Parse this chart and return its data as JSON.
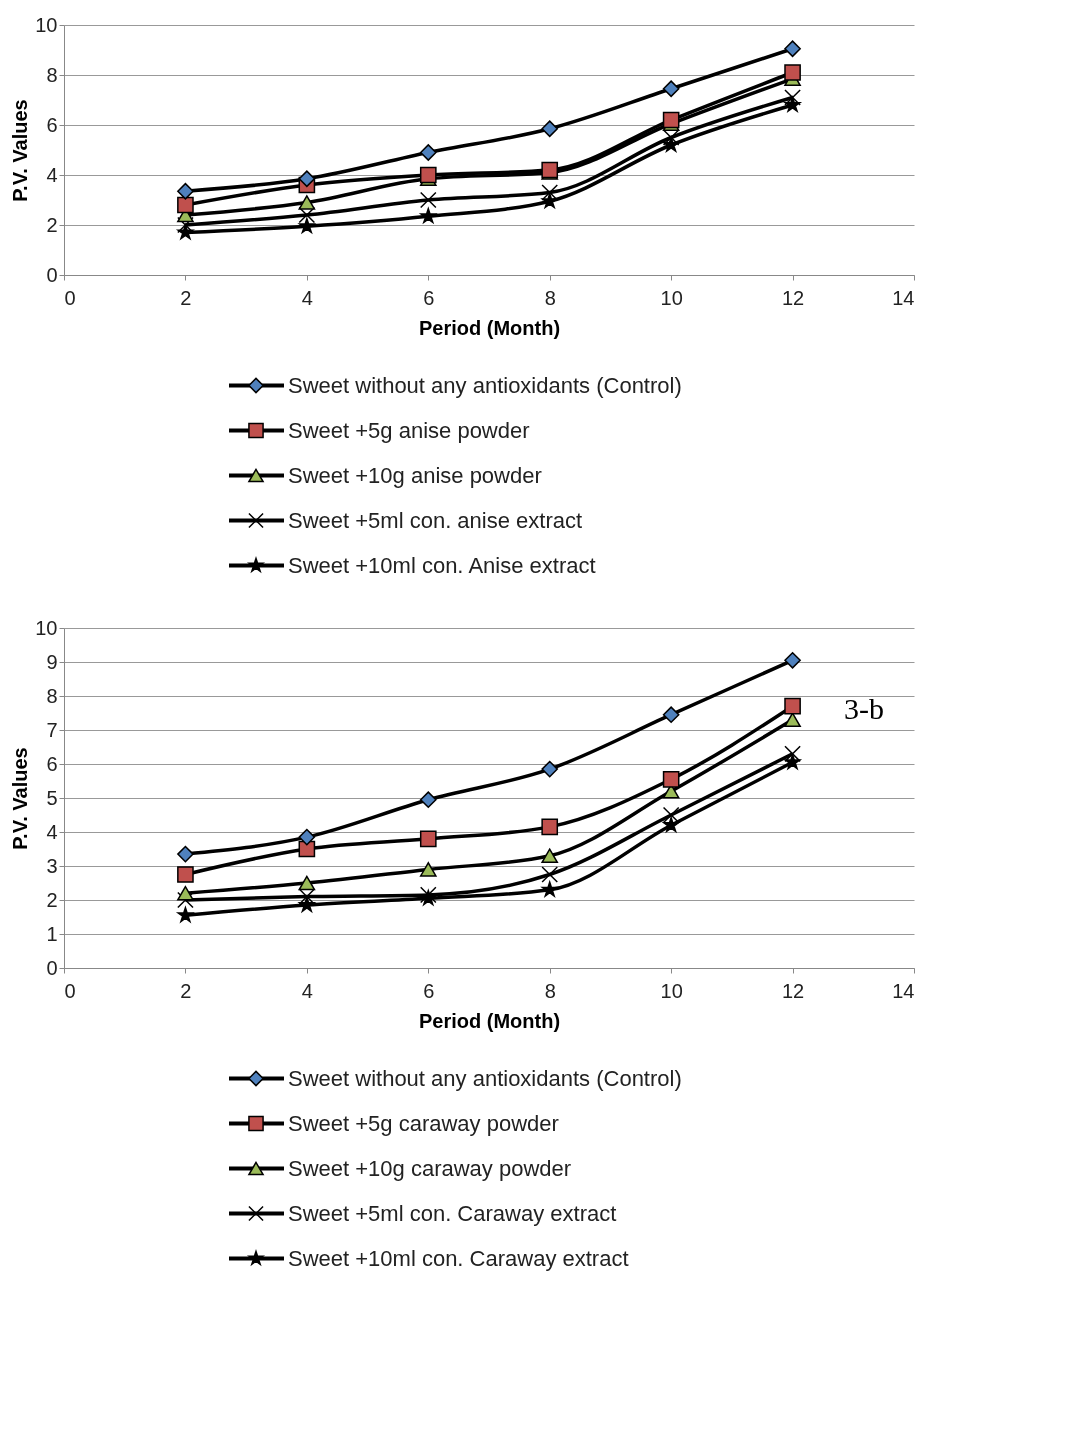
{
  "chart_data": [
    {
      "type": "line",
      "xlabel": "Period (Month)",
      "ylabel": "P.V. Values",
      "x": [
        2,
        4,
        6,
        8,
        10,
        12
      ],
      "xlim": [
        0,
        14
      ],
      "xticks": [
        0,
        2,
        4,
        6,
        8,
        10,
        12,
        14
      ],
      "ylim": [
        0,
        10
      ],
      "yticks": [
        0,
        2,
        4,
        6,
        8,
        10
      ],
      "grid": "y",
      "legend": "bottom",
      "series": [
        {
          "name": "Sweet without any antioxidants (Control)",
          "color": "#4f81bd",
          "marker": "diamond",
          "values": [
            3.35,
            3.85,
            4.9,
            5.85,
            7.45,
            9.05
          ]
        },
        {
          "name": "Sweet +5g anise powder",
          "color": "#c0504d",
          "marker": "square",
          "values": [
            2.8,
            3.6,
            4.0,
            4.2,
            6.2,
            8.1
          ]
        },
        {
          "name": "Sweet +10g anise powder",
          "color": "#9bbb59",
          "marker": "triangle",
          "values": [
            2.4,
            2.9,
            3.85,
            4.1,
            6.05,
            7.85
          ]
        },
        {
          "name": "Sweet +5ml con. anise extract",
          "color": "#000000",
          "marker": "cross",
          "values": [
            2.0,
            2.4,
            3.0,
            3.3,
            5.5,
            7.1
          ]
        },
        {
          "name": "Sweet +10ml con. Anise extract",
          "color": "#000000",
          "marker": "star",
          "values": [
            1.7,
            1.95,
            2.35,
            2.95,
            5.2,
            6.8
          ]
        }
      ]
    },
    {
      "type": "line",
      "xlabel": "Period (Month)",
      "ylabel": "P.V. Values",
      "x": [
        2,
        4,
        6,
        8,
        10,
        12
      ],
      "xlim": [
        0,
        14
      ],
      "xticks": [
        0,
        2,
        4,
        6,
        8,
        10,
        12,
        14
      ],
      "ylim": [
        0,
        10
      ],
      "yticks": [
        0,
        1,
        2,
        3,
        4,
        5,
        6,
        7,
        8,
        9,
        10
      ],
      "grid": "y",
      "legend": "bottom",
      "annotations": [
        "3-b"
      ],
      "series": [
        {
          "name": "Sweet without any antioxidants (Control)",
          "color": "#4f81bd",
          "marker": "diamond",
          "values": [
            3.35,
            3.85,
            4.95,
            5.85,
            7.45,
            9.05
          ]
        },
        {
          "name": "Sweet +5g caraway powder",
          "color": "#c0504d",
          "marker": "square",
          "values": [
            2.75,
            3.5,
            3.8,
            4.15,
            5.55,
            7.7
          ]
        },
        {
          "name": "Sweet +10g caraway powder",
          "color": "#9bbb59",
          "marker": "triangle",
          "values": [
            2.2,
            2.5,
            2.9,
            3.3,
            5.2,
            7.3
          ]
        },
        {
          "name": "Sweet +5ml con. Caraway extract",
          "color": "#000000",
          "marker": "cross",
          "values": [
            2.0,
            2.1,
            2.15,
            2.75,
            4.5,
            6.3
          ]
        },
        {
          "name": "Sweet +10ml con. Caraway extract",
          "color": "#000000",
          "marker": "star",
          "values": [
            1.55,
            1.85,
            2.05,
            2.3,
            4.2,
            6.05
          ]
        }
      ]
    }
  ]
}
